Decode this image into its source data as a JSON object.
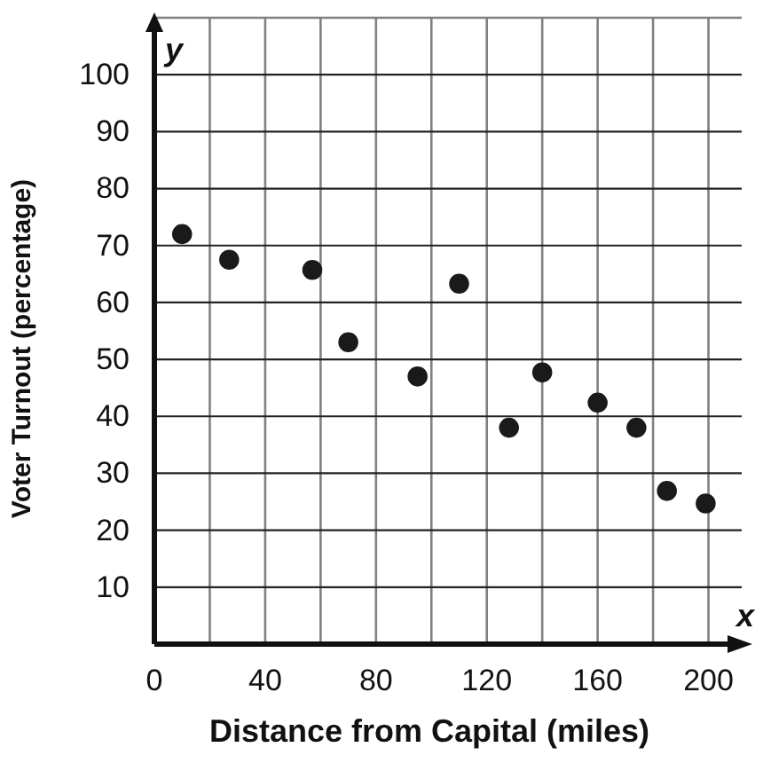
{
  "chart_data": {
    "type": "scatter",
    "xlabel": "Distance from Capital (miles)",
    "ylabel": "Voter Turnout (percentage)",
    "x": [
      10,
      27,
      57,
      70,
      95,
      110,
      128,
      140,
      160,
      174,
      185,
      199
    ],
    "values": [
      72,
      67.5,
      65.7,
      53,
      47,
      63.3,
      38,
      47.7,
      42.4,
      38,
      26.9,
      24.7
    ],
    "color": "#1a1a1a",
    "marker": "circle",
    "xlim": [
      0,
      212
    ],
    "ylim": [
      0,
      110
    ],
    "xticks": [
      0,
      {
        "value": 20,
        "label": null
      },
      40,
      {
        "value": 60,
        "label": null
      },
      80,
      {
        "value": 100,
        "label": null
      },
      120,
      {
        "value": 140,
        "label": null
      },
      160,
      {
        "value": 180,
        "label": null
      },
      200
    ],
    "yticks": [
      10,
      20,
      30,
      40,
      50,
      60,
      70,
      80,
      90,
      100
    ],
    "grid": true,
    "annotations": [
      "x",
      "y"
    ]
  }
}
